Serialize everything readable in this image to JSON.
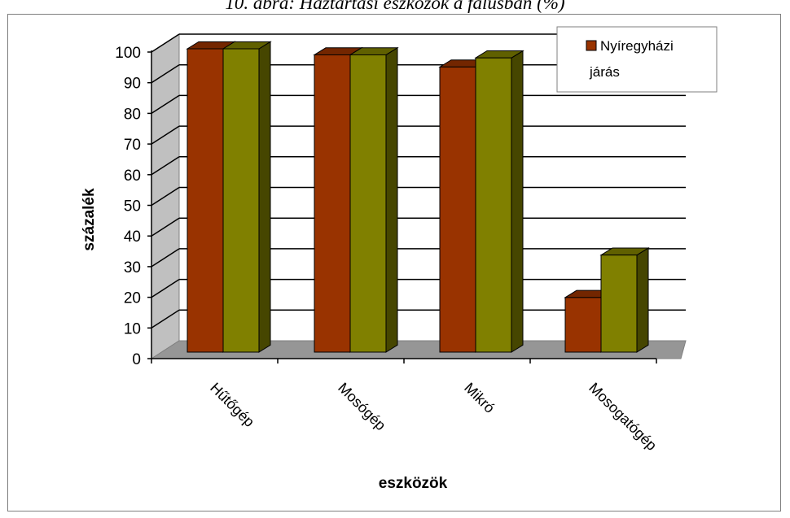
{
  "figure_caption": "10. ábra: Háztartási eszközök a falusban (%)",
  "chart_data": {
    "type": "bar",
    "style": "3d-clustered-column",
    "categories": [
      "Hűtőgép",
      "Mosógép",
      "Mikró",
      "Mosogatógép"
    ],
    "series": [
      {
        "name": "Nyíregyházi járás",
        "values": [
          100,
          98,
          94,
          18
        ],
        "color": "#993300"
      },
      {
        "name": "",
        "values": [
          100,
          98,
          97,
          32
        ],
        "color": "#808000"
      }
    ],
    "xlabel": "eszközök",
    "ylabel": "százalék",
    "ylim": [
      0,
      100
    ],
    "yticks": [
      0,
      10,
      20,
      30,
      40,
      50,
      60,
      70,
      80,
      90,
      100
    ],
    "grid": true,
    "legend_position": "top-right",
    "legend_lines": [
      "Nyíregyházi",
      "járás"
    ],
    "wall_color": "#c0c0c0",
    "floor_color": "#969696"
  }
}
